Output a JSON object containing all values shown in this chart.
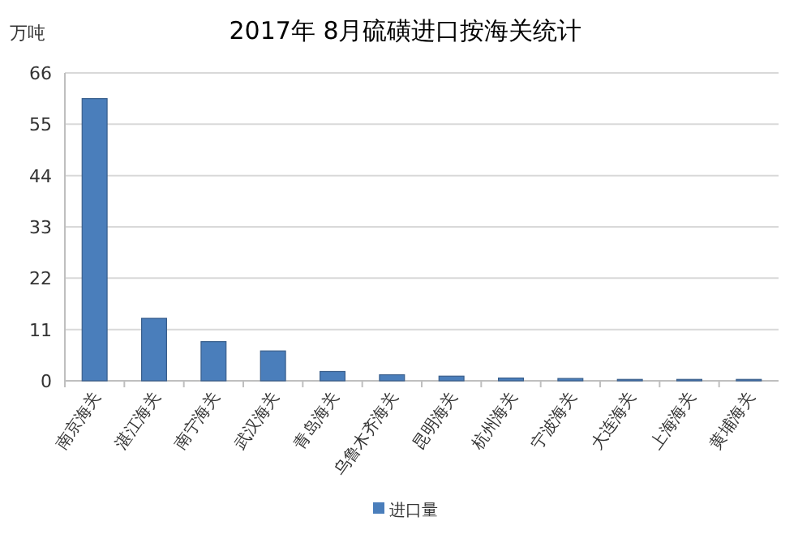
{
  "chart_data": {
    "type": "bar",
    "title": "2017年 8月硫磺进口按海关统计",
    "ylabel": "万吨",
    "categories": [
      "南京海关",
      "湛江海关",
      "南宁海关",
      "武汉海关",
      "青岛海关",
      "乌鲁木齐海关",
      "昆明海关",
      "杭州海关",
      "宁波海关",
      "大连海关",
      "上海海关",
      "黄埔海关"
    ],
    "series": [
      {
        "name": "进口量",
        "color": "#4a7ebb",
        "values": [
          60.5,
          13.4,
          8.4,
          6.4,
          2,
          1.3,
          1,
          0.6,
          0.5,
          0.3,
          0.3,
          0.3
        ]
      }
    ],
    "ylim": [
      0,
      66
    ],
    "yticks": [
      0,
      11,
      22,
      33,
      44,
      55,
      66
    ],
    "grid": "y",
    "legend": "bottom"
  }
}
